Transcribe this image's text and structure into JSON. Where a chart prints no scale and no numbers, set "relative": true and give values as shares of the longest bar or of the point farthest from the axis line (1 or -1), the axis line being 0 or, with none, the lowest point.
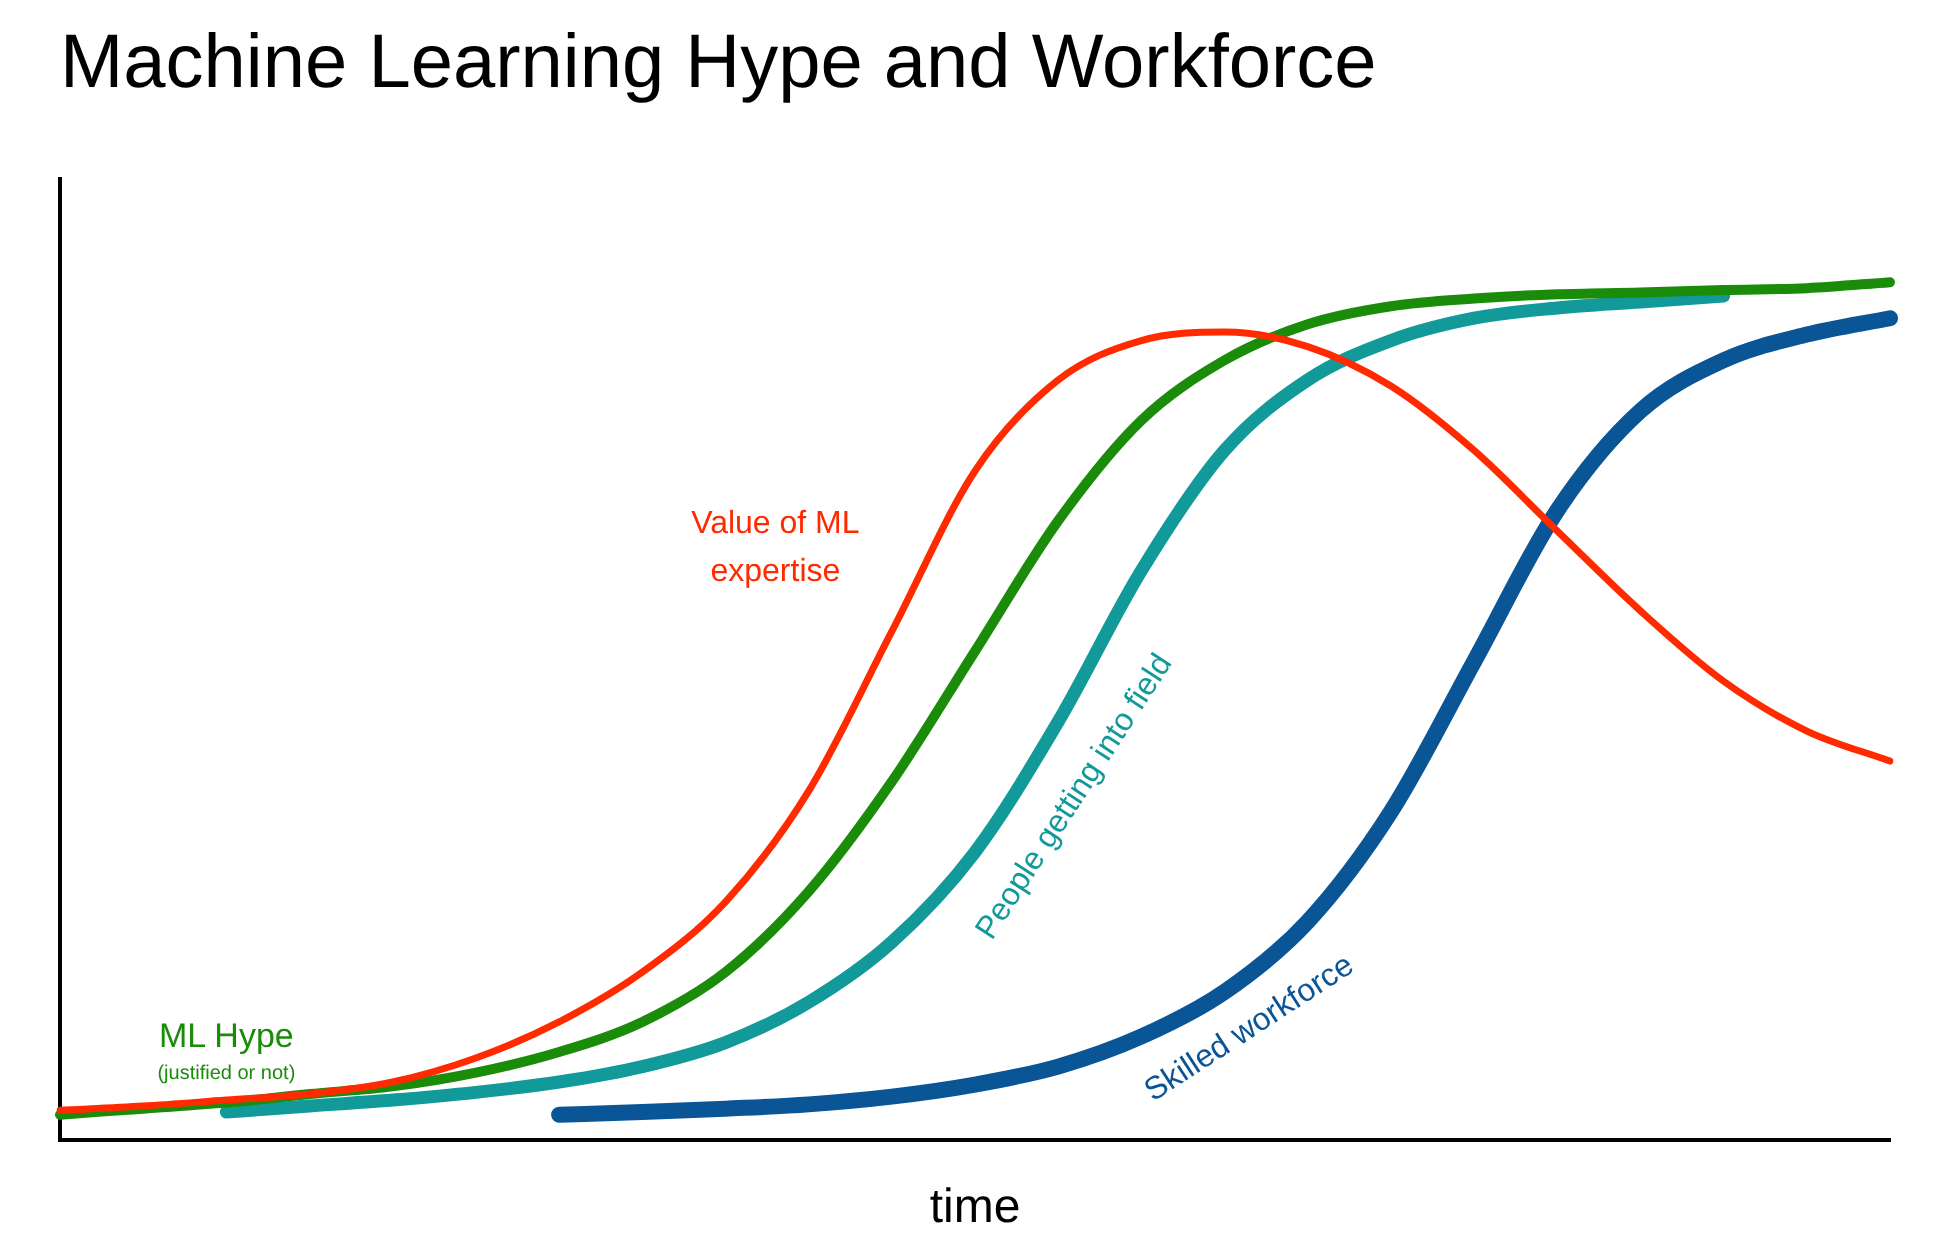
{
  "chart_data": {
    "type": "line",
    "title": "Machine Learning Hype and Workforce",
    "xlabel": "time",
    "relative": true,
    "legend": false,
    "grid": false,
    "marker": "none",
    "line_style": "solid",
    "tick_labels": false,
    "categories": [
      null,
      null,
      null,
      null,
      null,
      null,
      null,
      null,
      null,
      null,
      null,
      null,
      null,
      null,
      null,
      null,
      null,
      null,
      null,
      null,
      null,
      null,
      null
    ],
    "series": [
      {
        "name": "Value of ML expertise",
        "color": "#ff2a00",
        "values": [
          0.035,
          0.04,
          0.047,
          0.054,
          0.068,
          0.096,
          0.138,
          0.196,
          0.278,
          0.407,
          0.593,
          0.78,
          0.886,
          0.932,
          0.942,
          0.925,
          0.879,
          0.804,
          0.71,
          0.617,
          0.535,
          0.477,
          0.442
        ]
      },
      {
        "name": "ML Hype",
        "color": "#1a8c0a",
        "values": [
          0.03,
          0.037,
          0.044,
          0.054,
          0.063,
          0.079,
          0.103,
          0.138,
          0.196,
          0.29,
          0.418,
          0.57,
          0.722,
          0.839,
          0.909,
          0.951,
          0.972,
          0.981,
          0.986,
          0.988,
          0.991,
          0.993,
          1.0
        ]
      },
      {
        "name": "People getting into field",
        "color": "#12999a",
        "values": [
          null,
          null,
          0.033,
          0.04,
          0.047,
          0.056,
          0.068,
          0.086,
          0.114,
          0.161,
          0.231,
          0.336,
          0.488,
          0.664,
          0.804,
          0.886,
          0.932,
          0.958,
          0.97,
          0.977,
          0.984,
          null,
          null
        ]
      },
      {
        "name": "Skilled workforce",
        "color": "#0a5596",
        "values": [
          null,
          null,
          null,
          null,
          null,
          null,
          0.03,
          0.033,
          0.037,
          0.042,
          0.051,
          0.065,
          0.086,
          0.121,
          0.173,
          0.255,
          0.383,
          0.558,
          0.734,
          0.85,
          0.909,
          0.939,
          0.958
        ]
      }
    ],
    "annotations": [
      "(justified or not)"
    ]
  }
}
